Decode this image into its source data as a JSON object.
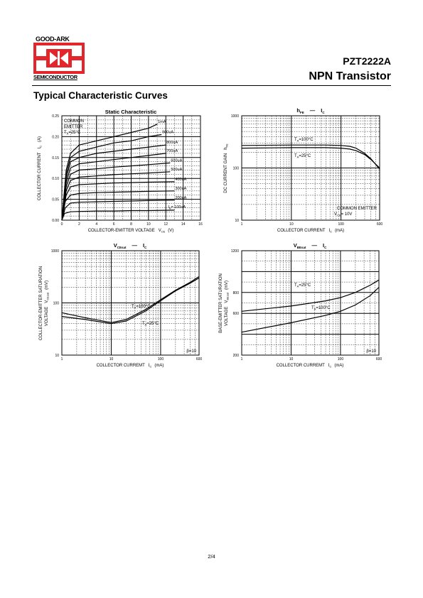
{
  "header": {
    "logo_top": "GOOD-ARK",
    "logo_bottom": "SEMICONDUCTOR",
    "part_number": "PZT2222A",
    "part_type": "NPN Transistor"
  },
  "section_title": "Typical Characteristic Curves",
  "page_number": "2/4",
  "colors": {
    "logo_red": "#e3262c",
    "ink": "#000000"
  },
  "charts": {
    "static": {
      "title": "Static Characteristic",
      "note_lines": [
        "COMMON",
        "EMITTER",
        "T",
        "A",
        "=25°C"
      ],
      "xlabel": "COLLECTOR-EMITTER VOLTAGE",
      "xlabel_sym": "V",
      "xlabel_sub": "CE",
      "xlabel_unit": "(V)",
      "ylabel": "COLLECTOR CURRENT",
      "ylabel_sym": "I",
      "ylabel_sub": "C",
      "ylabel_unit": "(A)",
      "xticks": [
        "0",
        "2",
        "4",
        "6",
        "8",
        "10",
        "12",
        "14",
        "16"
      ],
      "yticks": [
        "0.00",
        "0.05",
        "0.10",
        "0.15",
        "0.20",
        "0.25"
      ],
      "curve_labels": [
        "1mA",
        "900uA",
        "800uA",
        "700uA",
        "600uA",
        "500uA",
        "400uA",
        "300uA",
        "200uA",
        "I",
        "B",
        "= 100uA"
      ]
    },
    "hfe": {
      "title_sym": "h",
      "title_sub": "FE",
      "title_dash": "—",
      "title_sym2": "I",
      "title_sub2": "C",
      "ylabel": "DC CURRENT GAIN",
      "ylabel_sym": "h",
      "ylabel_sub": "FE",
      "xlabel": "COLLECTOR CURRENT",
      "xlabel_sym": "I",
      "xlabel_sub": "C",
      "xlabel_unit": "(mA)",
      "xticks": [
        "1",
        "10",
        "100",
        "600"
      ],
      "yticks": [
        "10",
        "100",
        "1000"
      ],
      "label_hot": [
        "T",
        "A",
        "=100°C"
      ],
      "label_cold": [
        "T",
        "A",
        "=25°C"
      ],
      "note": [
        "COMMON EMITTER",
        "V",
        "CE",
        "= 10V"
      ]
    },
    "vcesat": {
      "title_sym": "V",
      "title_sub": "CEsat",
      "title_dash": "—",
      "title_sym2": "I",
      "title_sub2": "C",
      "ylabel1": "COLLECTOR-EMITTER SATURATION",
      "ylabel2": "VOLTAGE",
      "ylabel_sym": "V",
      "ylabel_sub": "CEsat",
      "ylabel_unit": "(mV)",
      "xlabel": "COLLECTOR CURREMT",
      "xlabel_sym": "I",
      "xlabel_sub": "C",
      "xlabel_unit": "(mA)",
      "xticks": [
        "1",
        "10",
        "100",
        "600"
      ],
      "yticks": [
        "10",
        "100",
        "1000"
      ],
      "label_hot": [
        "T",
        "A",
        "=100°C"
      ],
      "label_cold": [
        "T",
        "A",
        "=25°C"
      ],
      "beta": "β=10"
    },
    "vbesat": {
      "title_sym": "V",
      "title_sub": "BEsat",
      "title_dash": "—",
      "title_sym2": "I",
      "title_sub2": "C",
      "ylabel1": "BASE-EMITTER SATURATION",
      "ylabel2": "VOLTAGE",
      "ylabel_sym": "V",
      "ylabel_sub": "BEsat",
      "ylabel_unit": "(mV)",
      "xlabel": "COLLECTOR CURREMT",
      "xlabel_sym": "I",
      "xlabel_sub": "C",
      "xlabel_unit": "(mA)",
      "xticks": [
        "1",
        "10",
        "100",
        "600"
      ],
      "yticks": [
        "200",
        "600",
        "800",
        "1200"
      ],
      "label_cold": [
        "T",
        "A",
        "=25°C"
      ],
      "label_hot": [
        "T",
        "A",
        "=100°C"
      ],
      "beta": "β=10"
    }
  },
  "chart_data": [
    {
      "type": "line",
      "title": "Static Characteristic",
      "xlabel": "COLLECTOR-EMITTER VOLTAGE VCE (V)",
      "ylabel": "COLLECTOR CURRENT IC (A)",
      "xlim": [
        0,
        16
      ],
      "ylim": [
        0,
        0.25
      ],
      "grid": true,
      "series": [
        {
          "name": "1mA",
          "x": [
            0,
            0.5,
            1,
            2,
            4,
            6,
            8,
            10,
            11
          ],
          "y": [
            0,
            0.12,
            0.16,
            0.18,
            0.19,
            0.2,
            0.21,
            0.22,
            0.23
          ]
        },
        {
          "name": "900uA",
          "x": [
            0,
            0.5,
            1,
            2,
            4,
            6,
            8,
            10,
            11.5
          ],
          "y": [
            0,
            0.11,
            0.15,
            0.165,
            0.175,
            0.185,
            0.19,
            0.2,
            0.205
          ]
        },
        {
          "name": "800uA",
          "x": [
            0,
            0.5,
            1,
            2,
            4,
            6,
            8,
            10,
            12
          ],
          "y": [
            0,
            0.1,
            0.14,
            0.15,
            0.16,
            0.165,
            0.17,
            0.175,
            0.18
          ]
        },
        {
          "name": "700uA",
          "x": [
            0,
            0.5,
            1,
            2,
            4,
            6,
            8,
            10,
            12
          ],
          "y": [
            0,
            0.09,
            0.125,
            0.135,
            0.14,
            0.145,
            0.15,
            0.155,
            0.16
          ]
        },
        {
          "name": "600uA",
          "x": [
            0,
            0.5,
            1,
            2,
            4,
            6,
            8,
            10,
            12.5
          ],
          "y": [
            0,
            0.08,
            0.11,
            0.12,
            0.123,
            0.127,
            0.13,
            0.133,
            0.137
          ]
        },
        {
          "name": "500uA",
          "x": [
            0,
            0.5,
            1,
            2,
            4,
            6,
            8,
            10,
            12.5
          ],
          "y": [
            0,
            0.07,
            0.095,
            0.103,
            0.106,
            0.109,
            0.111,
            0.113,
            0.116
          ]
        },
        {
          "name": "400uA",
          "x": [
            0,
            0.5,
            1,
            2,
            4,
            6,
            8,
            10,
            13
          ],
          "y": [
            0,
            0.06,
            0.08,
            0.085,
            0.087,
            0.089,
            0.09,
            0.091,
            0.092
          ]
        },
        {
          "name": "300uA",
          "x": [
            0,
            0.4,
            1,
            2,
            4,
            6,
            8,
            10,
            13
          ],
          "y": [
            0,
            0.045,
            0.06,
            0.064,
            0.066,
            0.067,
            0.068,
            0.069,
            0.07
          ]
        },
        {
          "name": "200uA",
          "x": [
            0,
            0.4,
            1,
            2,
            4,
            6,
            8,
            10,
            13
          ],
          "y": [
            0,
            0.03,
            0.041,
            0.043,
            0.044,
            0.045,
            0.046,
            0.047,
            0.048
          ]
        },
        {
          "name": "IB = 100uA",
          "x": [
            0,
            0.3,
            1,
            2,
            4,
            6,
            8,
            10,
            13
          ],
          "y": [
            0,
            0.016,
            0.02,
            0.021,
            0.022,
            0.022,
            0.023,
            0.023,
            0.024
          ]
        }
      ]
    },
    {
      "type": "line",
      "title": "hFE — IC",
      "xlabel": "COLLECTOR CURRENT IC (mA)",
      "ylabel": "DC CURRENT GAIN hFE",
      "xlim": [
        1,
        600
      ],
      "ylim": [
        10,
        1000
      ],
      "xscale": "log",
      "yscale": "log",
      "grid": true,
      "series": [
        {
          "name": "TA=100°C",
          "x": [
            1,
            10,
            50,
            100,
            150,
            200,
            300,
            400,
            600
          ],
          "y": [
            270,
            275,
            275,
            270,
            260,
            240,
            190,
            150,
            95
          ]
        },
        {
          "name": "TA=25°C",
          "x": [
            1,
            10,
            50,
            100,
            150,
            200,
            300,
            400,
            600
          ],
          "y": [
            240,
            245,
            245,
            240,
            230,
            215,
            180,
            145,
            100
          ]
        }
      ]
    },
    {
      "type": "line",
      "title": "VCEsat — IC",
      "xlabel": "COLLECTOR CURREMT IC (mA)",
      "ylabel": "COLLECTOR-EMITTER SATURATION VOLTAGE VCEsat (mV)",
      "xlim": [
        1,
        600
      ],
      "ylim": [
        10,
        1000
      ],
      "xscale": "log",
      "yscale": "log",
      "grid": true,
      "series": [
        {
          "name": "TA=100°C",
          "x": [
            1,
            3,
            10,
            20,
            50,
            100,
            200,
            400,
            600
          ],
          "y": [
            55,
            48,
            40,
            45,
            70,
            110,
            170,
            240,
            300
          ]
        },
        {
          "name": "TA=25°C",
          "x": [
            1,
            3,
            10,
            20,
            50,
            100,
            200,
            400,
            600
          ],
          "y": [
            65,
            52,
            42,
            48,
            75,
            115,
            175,
            250,
            320
          ]
        }
      ]
    },
    {
      "type": "line",
      "title": "VBEsat — IC",
      "xlabel": "COLLECTOR CURREMT IC (mA)",
      "ylabel": "BASE-EMITTER SATURATION VOLTAGE VBEsat (mV)",
      "xlim": [
        1,
        600
      ],
      "ylim": [
        200,
        1200
      ],
      "grid": true,
      "series": [
        {
          "name": "TA=25°C",
          "x": [
            1,
            10,
            50,
            100,
            200,
            400,
            600
          ],
          "y": [
            620,
            670,
            720,
            750,
            800,
            870,
            920
          ]
        },
        {
          "name": "TA=100°C",
          "x": [
            1,
            10,
            50,
            100,
            200,
            400,
            600
          ],
          "y": [
            420,
            510,
            580,
            620,
            680,
            770,
            850
          ]
        }
      ]
    }
  ]
}
